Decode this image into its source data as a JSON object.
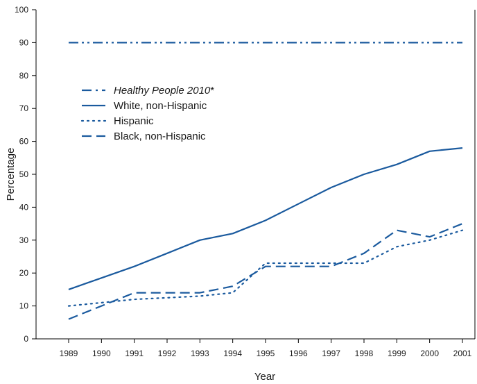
{
  "chart_data": {
    "type": "line",
    "xlabel": "Year",
    "ylabel": "Percentage",
    "xlim": [
      1989,
      2001
    ],
    "ylim": [
      0,
      100
    ],
    "x_ticks": [
      "1989",
      "1990",
      "1991",
      "1992",
      "1993",
      "1994",
      "1995",
      "1996",
      "1997",
      "1998",
      "1999",
      "2000",
      "2001"
    ],
    "y_ticks": [
      "0",
      "10",
      "20",
      "30",
      "40",
      "50",
      "60",
      "70",
      "80",
      "90",
      "100"
    ],
    "x": [
      1989,
      1990,
      1991,
      1992,
      1993,
      1994,
      1995,
      1996,
      1997,
      1998,
      1999,
      2000,
      2001
    ],
    "grid": false,
    "legend_placement": "upper-left",
    "line_color": "#1a5a9e",
    "series": [
      {
        "name": "Healthy People 2010",
        "name_suffix": "*",
        "style": "dash-dot-dot",
        "italic": true,
        "values": [
          90,
          90,
          90,
          90,
          90,
          90,
          90,
          90,
          90,
          90,
          90,
          90,
          90
        ]
      },
      {
        "name": "White, non-Hispanic",
        "style": "solid",
        "italic": false,
        "values": [
          15,
          18.5,
          22,
          26,
          30,
          32,
          36,
          41,
          46,
          50,
          53,
          57,
          58
        ]
      },
      {
        "name": "Hispanic",
        "style": "dotted",
        "italic": false,
        "values": [
          10,
          11,
          12,
          12.5,
          13,
          14,
          23,
          23,
          23,
          23,
          28,
          30,
          33
        ]
      },
      {
        "name": "Black, non-Hispanic",
        "style": "dashed",
        "italic": false,
        "values": [
          6,
          10,
          14,
          14,
          14,
          16,
          22,
          22,
          22,
          26,
          33,
          31,
          35
        ]
      }
    ]
  }
}
